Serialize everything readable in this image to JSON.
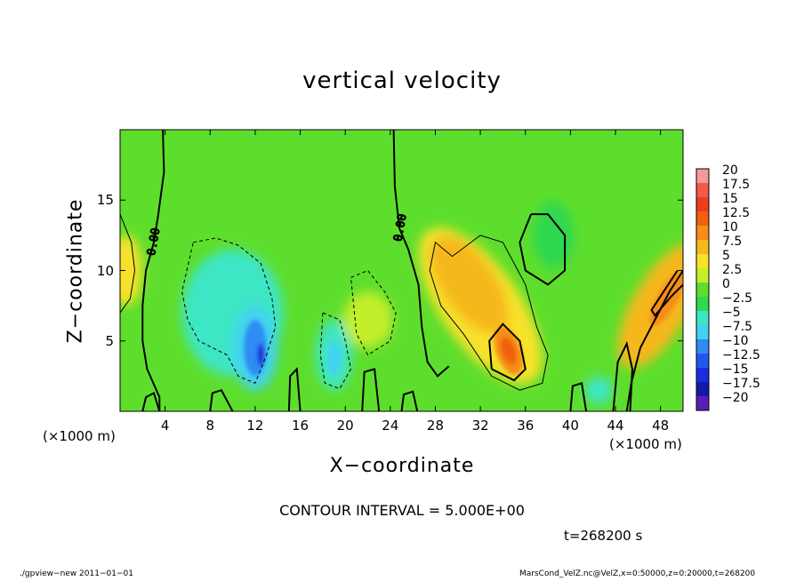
{
  "title": "vertical velocity",
  "xlabel": "X−coordinate",
  "ylabel": "Z−coordinate",
  "x_unit_left": "(×1000 m)",
  "x_unit_right": "(×1000 m)",
  "contour_interval_text": "CONTOUR INTERVAL = 5.000E+00",
  "time_text": "t=268200 s",
  "footer_left": "./gpview−new   2011−01−01",
  "footer_right": "MarsCond_VelZ.nc@VelZ,x=0:50000,z=0:20000,t=268200",
  "contour_labels": [
    "0.00",
    "0.00"
  ],
  "chart_data": {
    "type": "heatmap",
    "title": "vertical velocity",
    "xlabel": "X−coordinate",
    "ylabel": "Z−coordinate",
    "x_unit": "(×1000 m)",
    "xlim": [
      0,
      50
    ],
    "ylim": [
      0,
      20
    ],
    "x_ticks": [
      4,
      8,
      12,
      16,
      20,
      24,
      28,
      32,
      36,
      40,
      44,
      48
    ],
    "x_tick_labels": [
      "4",
      "8",
      "12",
      "16",
      "20",
      "24",
      "28",
      "32",
      "36",
      "40",
      "44",
      "48"
    ],
    "y_ticks": [
      5,
      10,
      15
    ],
    "y_tick_labels": [
      "5",
      "10",
      "15"
    ],
    "contour_interval": 5.0,
    "time_s": 268200,
    "colorbar": {
      "levels": [
        "20",
        "17.5",
        "15",
        "12.5",
        "10",
        "7.5",
        "5",
        "2.5",
        "0",
        "−2.5",
        "−5",
        "−7.5",
        "−10",
        "−12.5",
        "−15",
        "−17.5",
        "−20"
      ],
      "colors": [
        "#f49a9a",
        "#f25a4a",
        "#ee3c1e",
        "#f06010",
        "#f58d18",
        "#f5b81e",
        "#f6e22a",
        "#c4ee2a",
        "#5ede2c",
        "#2ed850",
        "#3ce6c4",
        "#42d2f2",
        "#2e8cf2",
        "#2456ee",
        "#1a2ce0",
        "#141aa8",
        "#5a1eb8"
      ]
    },
    "features": [
      {
        "kind": "updraft",
        "x_center": 34.5,
        "z_center": 4.5,
        "peak": 12.5
      },
      {
        "kind": "updraft",
        "x_center": 31,
        "z_center": 9,
        "peak": 7.5
      },
      {
        "kind": "updraft",
        "x_center": 48.5,
        "z_center": 8,
        "peak": 10
      },
      {
        "kind": "updraft",
        "x_center": 0.5,
        "z_center": 10,
        "peak": 5
      },
      {
        "kind": "downdraft",
        "x_center": 12,
        "z_center": 5,
        "peak": -10
      },
      {
        "kind": "downdraft",
        "x_center": 19,
        "z_center": 3.5,
        "peak": -7.5
      },
      {
        "kind": "downdraft",
        "x_center": 9,
        "z_center": 7.5,
        "peak": -5
      },
      {
        "kind": "downdraft",
        "x_center": 42.5,
        "z_center": 1.5,
        "peak": -5
      }
    ]
  }
}
